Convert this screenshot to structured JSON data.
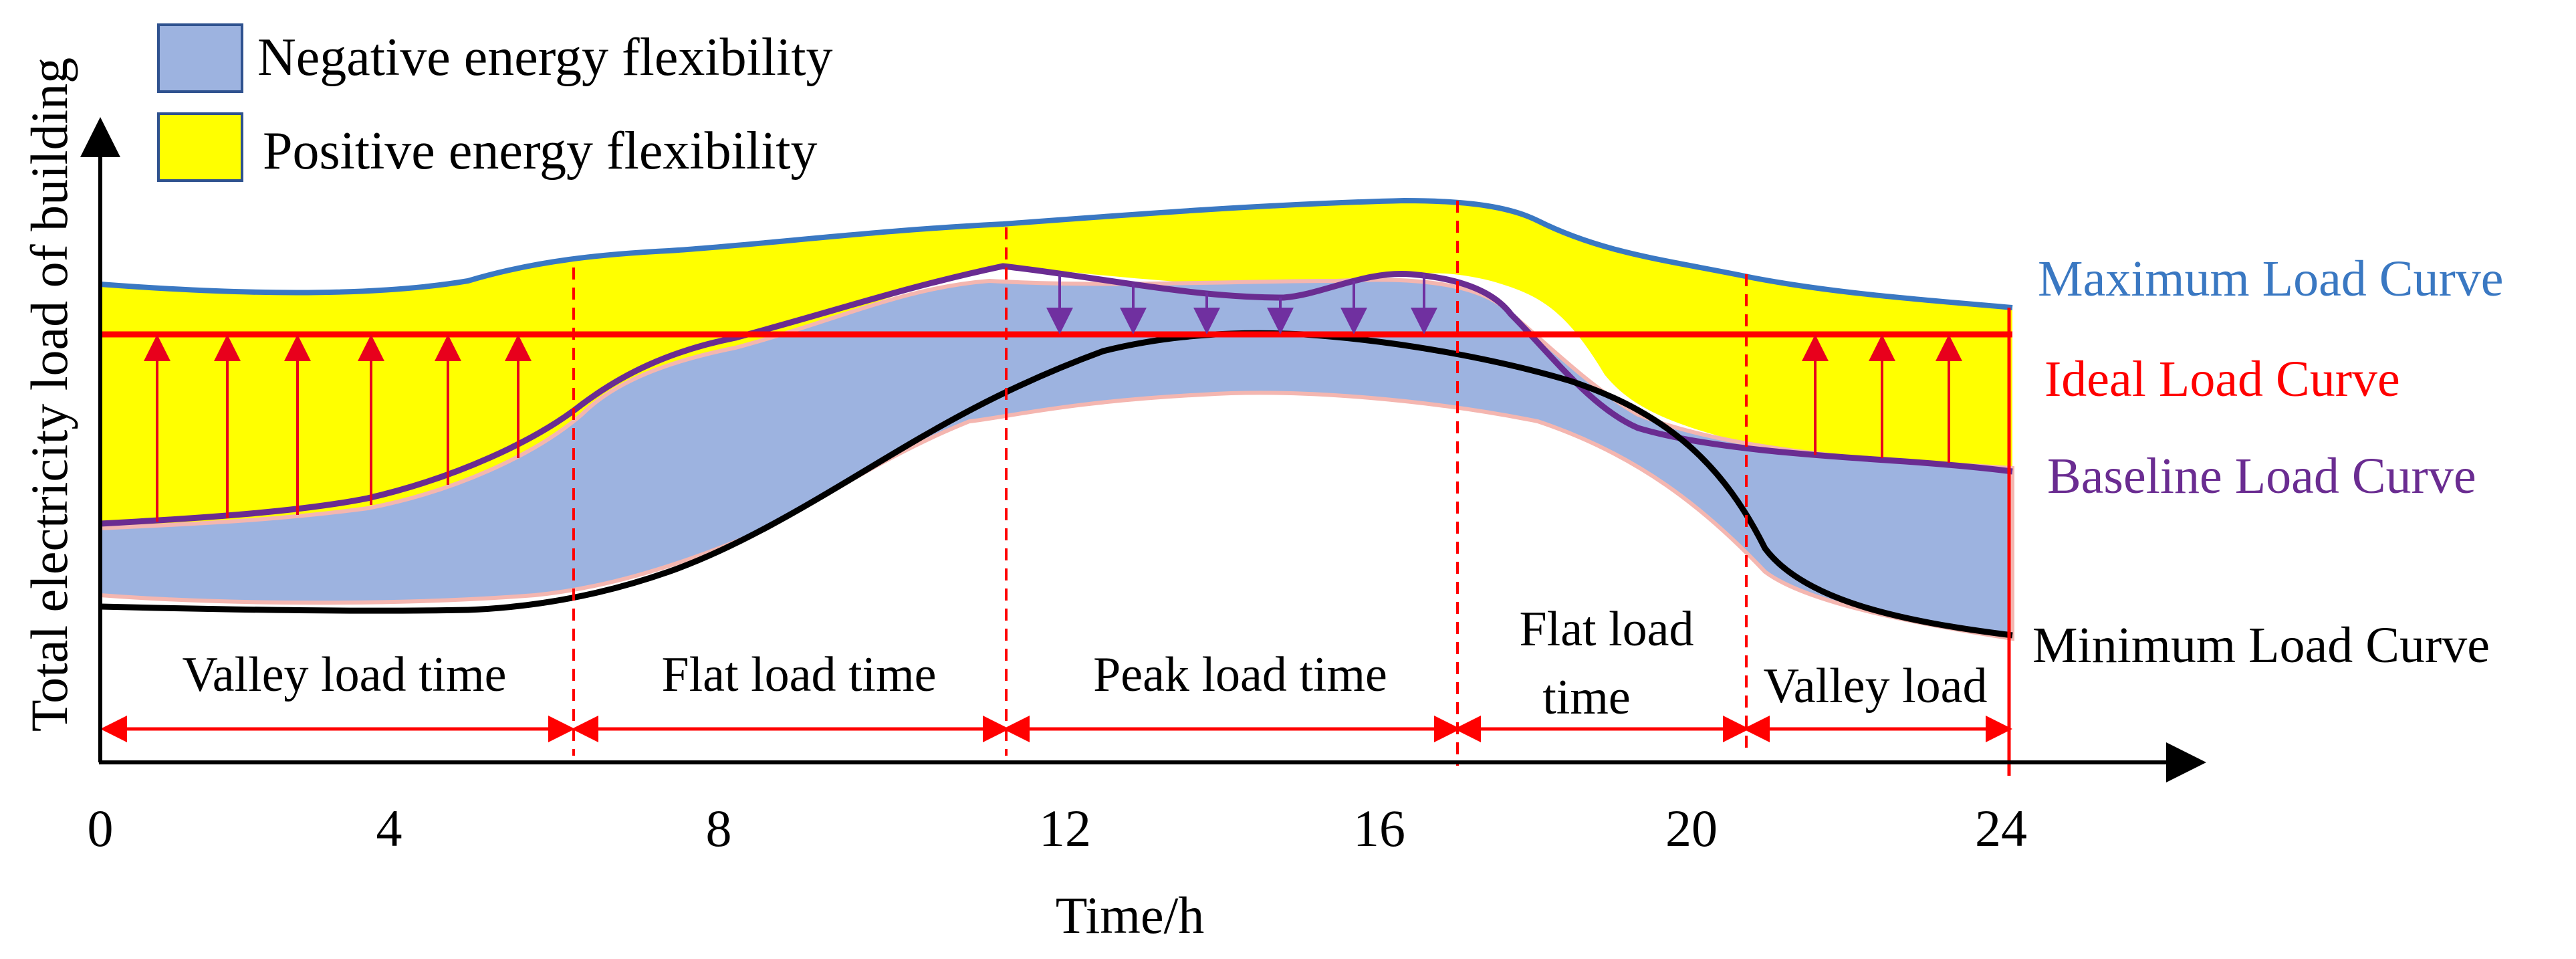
{
  "legend": {
    "negative": {
      "label": "Negative energy flexibility",
      "color": "#9db3e0"
    },
    "positive": {
      "label": "Positive energy flexibility",
      "color": "#ffff00"
    }
  },
  "curves": {
    "maximum": {
      "label": "Maximum Load Curve",
      "color": "#3a78c2"
    },
    "ideal": {
      "label": "Ideal Load Curve",
      "color": "#ff0000"
    },
    "baseline": {
      "label": "Baseline Load Curve",
      "color": "#6a2c91"
    },
    "minimum": {
      "label": "Minimum Load Curve",
      "color": "#000000"
    }
  },
  "periods": [
    {
      "label_lines": [
        "Valley load time"
      ]
    },
    {
      "label_lines": [
        "Flat load time"
      ]
    },
    {
      "label_lines": [
        "Peak load time"
      ]
    },
    {
      "label_lines": [
        "Flat load",
        "time"
      ]
    },
    {
      "label_lines": [
        "Valley load"
      ]
    }
  ],
  "axes": {
    "x_title": "Time/h",
    "y_title": "Total electricity load of building",
    "x_ticks": [
      "0",
      "4",
      "8",
      "12",
      "16",
      "20",
      "24"
    ]
  },
  "colors": {
    "arrow_up": "#e8001c",
    "arrow_down": "#7030a0",
    "divider": "#ff0000"
  }
}
